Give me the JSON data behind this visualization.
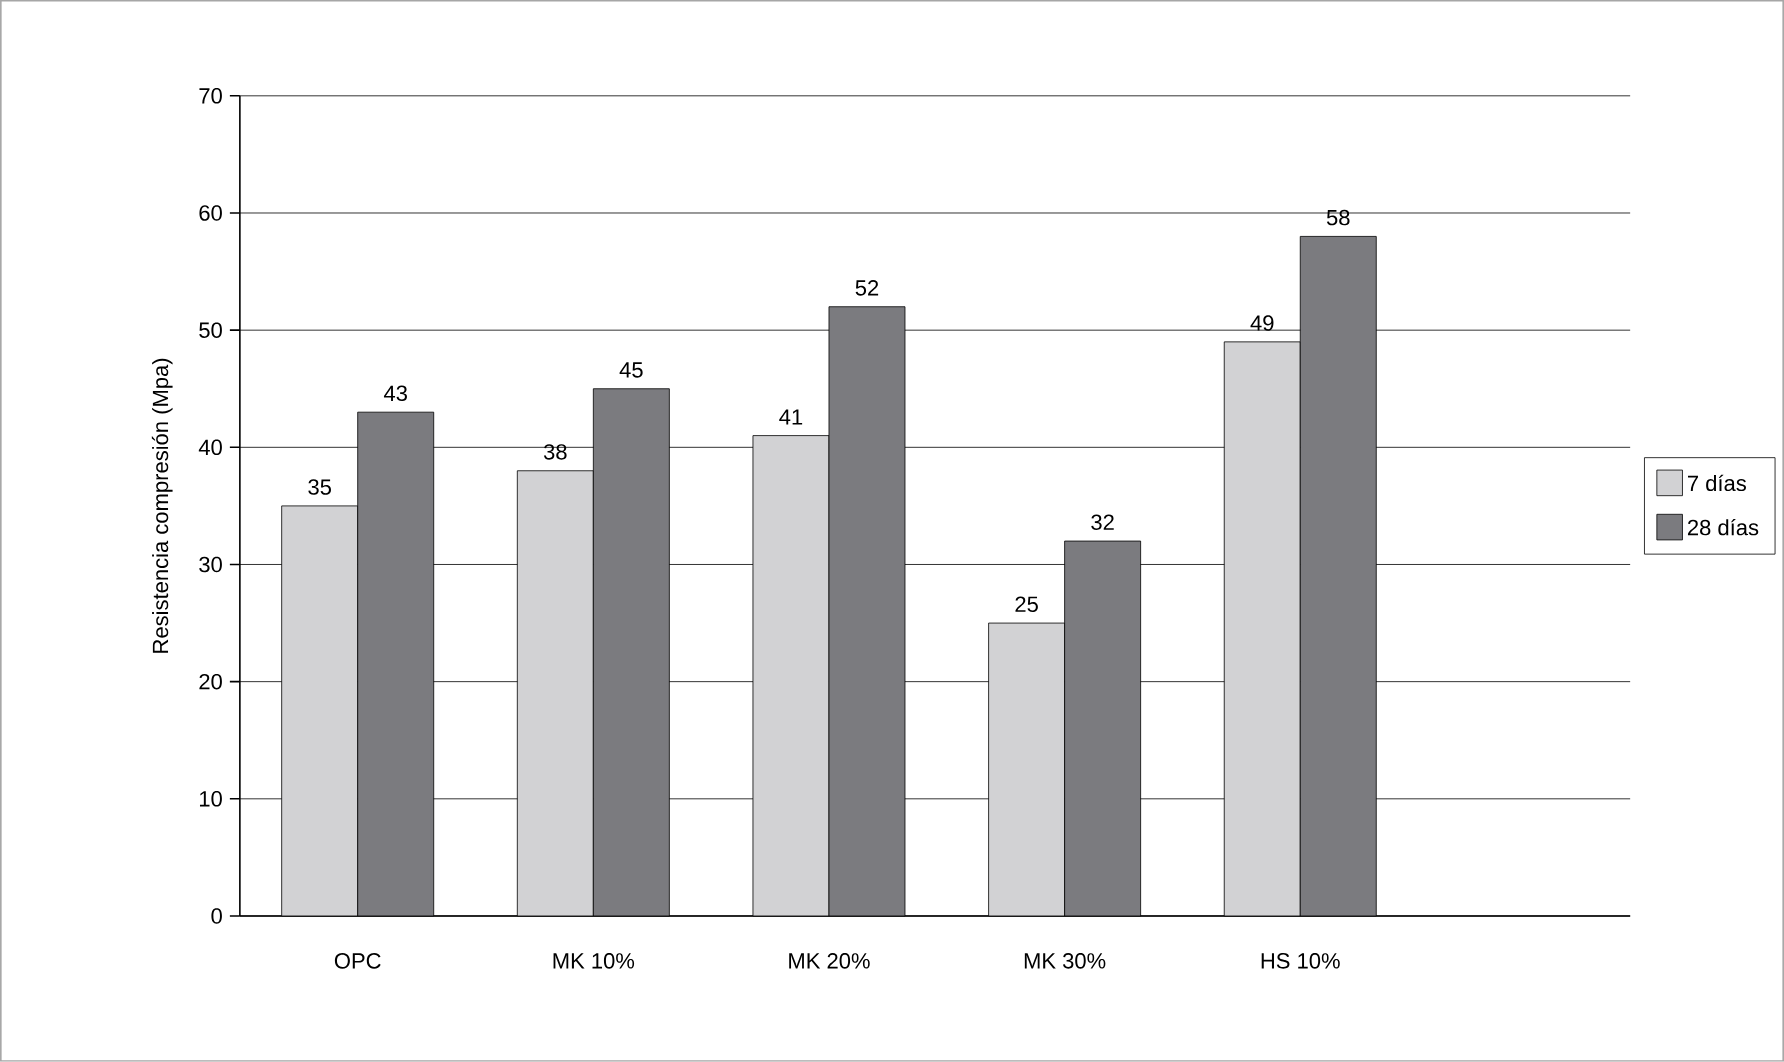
{
  "chart_data": {
    "type": "bar",
    "ylabel": "Resistencia compresión (Mpa)",
    "categories": [
      "OPC",
      "MK 10%",
      "MK 20%",
      "MK 30%",
      "HS 10%"
    ],
    "series": [
      {
        "name": "7 días",
        "color": "#d2d2d4",
        "values": [
          35,
          38,
          41,
          25,
          49
        ]
      },
      {
        "name": "28 días",
        "color": "#7b7b7f",
        "values": [
          43,
          45,
          52,
          32,
          58
        ]
      }
    ],
    "ylim": [
      0,
      70
    ],
    "yticks": [
      0,
      10,
      20,
      30,
      40,
      50,
      60,
      70
    ],
    "grid": "y",
    "legend": "right",
    "data_labels": true
  }
}
